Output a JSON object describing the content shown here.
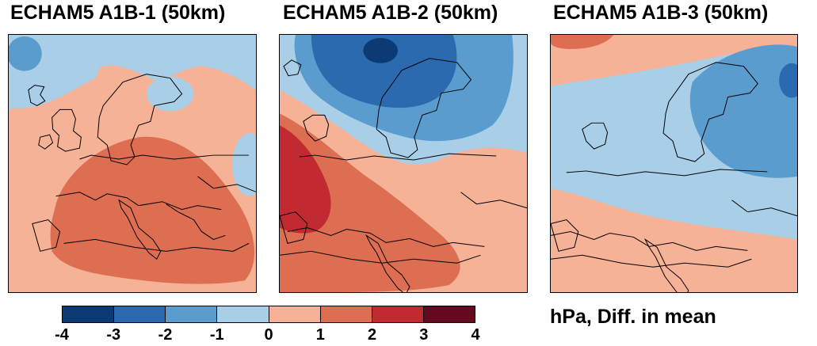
{
  "panels": [
    {
      "title": "ECHAM5 A1B-1 (50km)"
    },
    {
      "title": "ECHAM5 A1B-2 (50km)"
    },
    {
      "title": "ECHAM5 A1B-3 (50km)"
    }
  ],
  "colorbar": {
    "ticks": [
      "-4",
      "-3",
      "-2",
      "-1",
      "0",
      "1",
      "2",
      "3",
      "4"
    ],
    "colors": [
      "#0b3a75",
      "#2b6aaf",
      "#5b9ccf",
      "#a9cfe8",
      "#f6b296",
      "#dd6e52",
      "#c22a32",
      "#650a1e"
    ]
  },
  "units_label": "hPa, Diff. in mean",
  "palette": {
    "neg1": "#a9cfe8",
    "neg2": "#5b9ccf",
    "neg3": "#2b6aaf",
    "neg4": "#0b3a75",
    "pos1": "#f6b296",
    "pos2": "#dd6e52",
    "pos3": "#c22a32"
  }
}
